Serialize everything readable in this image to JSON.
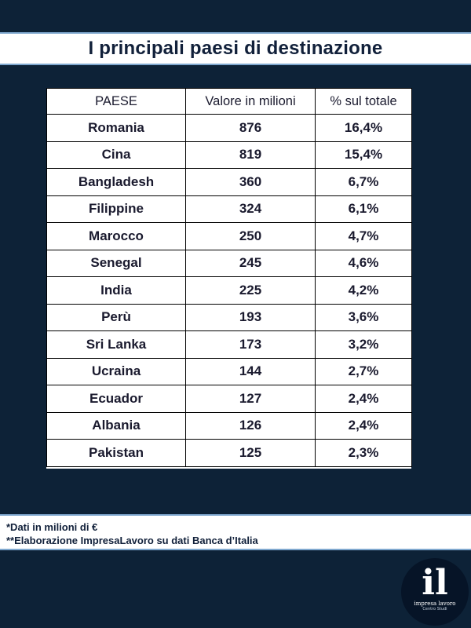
{
  "title": "I principali paesi di destinazione",
  "table": {
    "headers": [
      "PAESE",
      "Valore in milioni",
      "% sul totale"
    ],
    "rows": [
      [
        "Romania",
        "876",
        "16,4%"
      ],
      [
        "Cina",
        "819",
        "15,4%"
      ],
      [
        "Bangladesh",
        "360",
        "6,7%"
      ],
      [
        "Filippine",
        "324",
        "6,1%"
      ],
      [
        "Marocco",
        "250",
        "4,7%"
      ],
      [
        "Senegal",
        "245",
        "4,6%"
      ],
      [
        "India",
        "225",
        "4,2%"
      ],
      [
        "Perù",
        "193",
        "3,6%"
      ],
      [
        "Sri Lanka",
        "173",
        "3,2%"
      ],
      [
        "Ucraina",
        "144",
        "2,7%"
      ],
      [
        "Ecuador",
        "127",
        "2,4%"
      ],
      [
        "Albania",
        "126",
        "2,4%"
      ],
      [
        "Pakistan",
        "125",
        "2,3%"
      ]
    ]
  },
  "footer": {
    "note1": "*Dati in milioni di €",
    "note2": "**Elaborazione ImpresaLavoro su dati Banca d’Italia"
  },
  "logo": {
    "mark": "il",
    "name": "impresa lavoro",
    "sub": "Centro Studi"
  },
  "colors": {
    "background": "#0d2237",
    "panel": "#ffffff",
    "panel_border": "#7fa8cf",
    "text": "#11203a"
  }
}
